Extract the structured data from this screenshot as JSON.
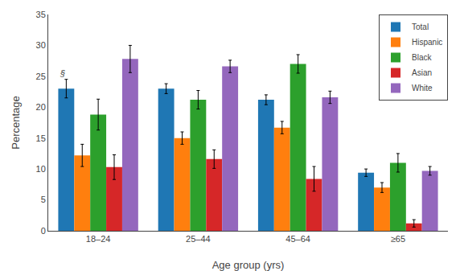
{
  "chart_data": {
    "type": "bar",
    "categories": [
      "18–24",
      "25–44",
      "45–64",
      "≥65"
    ],
    "series": [
      {
        "name": "Total",
        "values": [
          23.0,
          23.0,
          21.2,
          9.4
        ],
        "errors": [
          1.5,
          0.8,
          0.8,
          0.6
        ]
      },
      {
        "name": "Hispanic",
        "values": [
          12.2,
          15.0,
          16.7,
          7.0
        ],
        "errors": [
          1.8,
          1.0,
          1.0,
          0.8
        ]
      },
      {
        "name": "Black",
        "values": [
          18.8,
          21.2,
          27.0,
          11.0
        ],
        "errors": [
          2.5,
          1.5,
          1.5,
          1.5
        ]
      },
      {
        "name": "Asian",
        "values": [
          10.3,
          11.6,
          8.4,
          1.2
        ],
        "errors": [
          2.0,
          1.5,
          2.0,
          0.6
        ]
      },
      {
        "name": "White",
        "values": [
          27.8,
          26.6,
          21.6,
          9.7
        ],
        "errors": [
          2.2,
          1.0,
          1.0,
          0.7
        ]
      }
    ],
    "xlabel": "Age group (yrs)",
    "ylabel": "Percentage",
    "ylim": [
      0,
      35
    ],
    "yticks": [
      0,
      5,
      10,
      15,
      20,
      25,
      30,
      35
    ],
    "annotations": [
      {
        "text": "§",
        "category": "18–24",
        "series": "Total",
        "y": 24.5
      }
    ],
    "grid": false,
    "legend": "upper right"
  }
}
